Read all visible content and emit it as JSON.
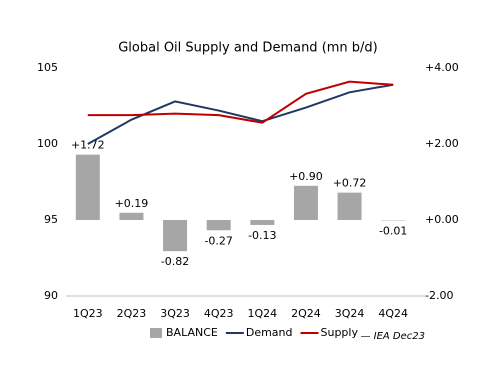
{
  "chart_data": {
    "type": "combo",
    "title": "Global Oil Supply and Demand (mn b/d)",
    "categories": [
      "1Q23",
      "2Q23",
      "3Q23",
      "4Q23",
      "1Q24",
      "2Q24",
      "3Q24",
      "4Q24"
    ],
    "series": [
      {
        "name": "BALANCE",
        "type": "bar",
        "axis": "y2",
        "color": "#a6a6a6",
        "values": [
          1.72,
          0.19,
          -0.82,
          -0.27,
          -0.13,
          0.9,
          0.72,
          -0.01
        ],
        "value_labels": [
          "+1.72",
          "+0.19",
          "-0.82",
          "-0.27",
          "-0.13",
          "+0.90",
          "+0.72",
          "-0.01"
        ]
      },
      {
        "name": "Demand",
        "type": "line",
        "color": "#1f3864",
        "values": [
          100.0,
          101.6,
          102.8,
          102.2,
          101.5,
          102.4,
          103.4,
          103.9
        ]
      },
      {
        "name": "Supply",
        "type": "line",
        "color": "#c00000",
        "values": [
          101.9,
          101.9,
          102.0,
          101.9,
          101.4,
          103.3,
          104.1,
          103.9
        ]
      }
    ],
    "ylim": [
      90,
      105
    ],
    "yticks": [
      90,
      95,
      100,
      105
    ],
    "y2lim": [
      -2,
      4
    ],
    "y2ticks": [
      {
        "value": -2,
        "label": "-2.00"
      },
      {
        "value": 0,
        "label": "+0.00"
      },
      {
        "value": 2,
        "label": "+2.00"
      },
      {
        "value": 4,
        "label": "+4.00"
      }
    ],
    "grid": false,
    "legend": "bottom",
    "source": "— IEA Dec23"
  }
}
